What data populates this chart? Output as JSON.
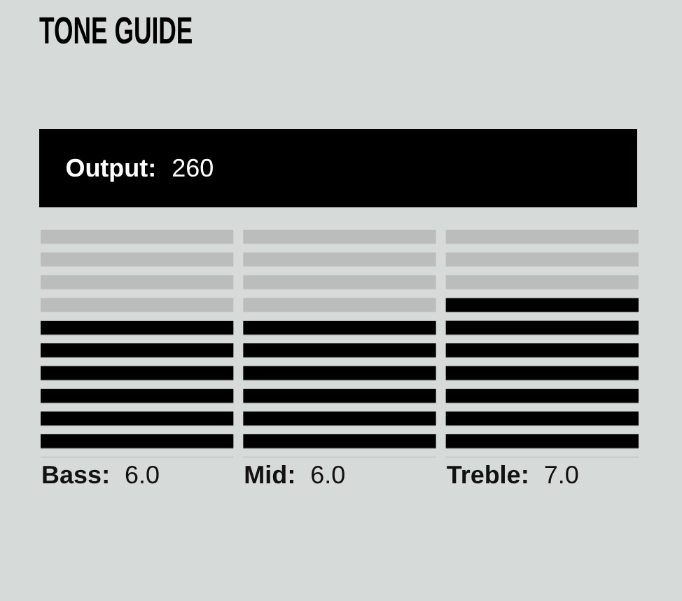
{
  "chart_data": {
    "type": "bar",
    "title": "TONE GUIDE",
    "annotations": [
      "Output:",
      "260"
    ],
    "categories": [
      "Bass",
      "Mid",
      "Treble"
    ],
    "series": [
      {
        "color": "#000000",
        "values": [
          6,
          6,
          7
        ],
        "value_labels": [
          "6.0",
          "6.0",
          "7.0"
        ]
      },
      {
        "color": "#bbbdbc",
        "values": [
          4,
          4,
          3
        ]
      }
    ],
    "stacked": true,
    "ylim": [
      0,
      10
    ],
    "tick_labels": "x"
  }
}
